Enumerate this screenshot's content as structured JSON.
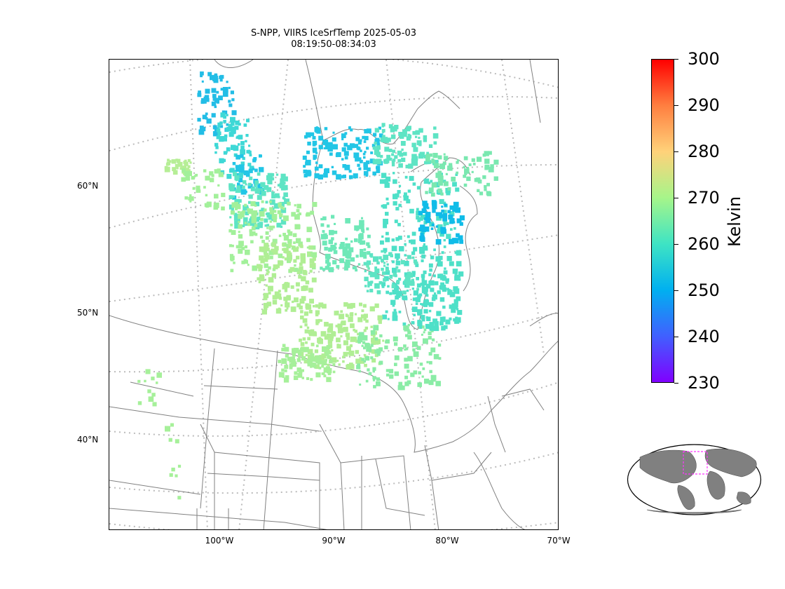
{
  "title": {
    "line1": "S-NPP, VIIRS IceSrfTemp 2025-05-03",
    "line2": "08:19:50-08:34:03"
  },
  "map": {
    "lat_labels": [
      "60°N",
      "50°N",
      "40°N"
    ],
    "lon_labels": [
      "100°W",
      "90°W",
      "80°W",
      "70°W"
    ],
    "colors": {
      "coastline": "#808080",
      "borders": "#808080",
      "graticule": "#bbbbbb",
      "frame": "#000000"
    }
  },
  "colorbar": {
    "label": "Kelvin",
    "ticks": [
      "300",
      "290",
      "280",
      "270",
      "260",
      "250",
      "240",
      "230"
    ],
    "range": [
      230,
      300
    ],
    "colormap": "rainbow",
    "colors": [
      "#ff0000",
      "#ff7f40",
      "#ffd27a",
      "#a6f58a",
      "#3ee4c4",
      "#00b0f0",
      "#4060ff",
      "#8000ff"
    ]
  },
  "inset": {
    "description_color": "#ff33ff",
    "land_color": "#808080"
  }
}
